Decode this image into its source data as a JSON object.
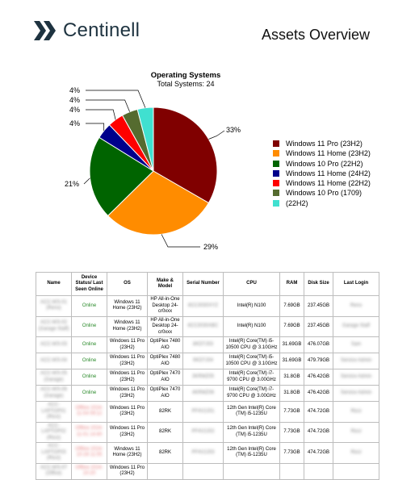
{
  "header": {
    "brand": "Centinell",
    "report_title": "Assets Overview",
    "brand_color": "#1e3340",
    "logo_icon": "chevron-logo-icon"
  },
  "chart_data": {
    "type": "pie",
    "title": "Operating Systems",
    "subtitle": "Total Systems: 24",
    "slices": [
      {
        "label": "Windows 11 Pro (23H2)",
        "value": 33,
        "display": "33%",
        "color": "#800000"
      },
      {
        "label": "Windows 11 Home (23H2)",
        "value": 29,
        "display": "29%",
        "color": "#ff8c00"
      },
      {
        "label": "Windows 10 Pro (22H2)",
        "value": 21,
        "display": "21%",
        "color": "#006400"
      },
      {
        "label": "Windows 11 Home (24H2)",
        "value": 4,
        "display": "4%",
        "color": "#00008b"
      },
      {
        "label": "Windows 11 Home (22H2)",
        "value": 4,
        "display": "4%",
        "color": "#ff0000"
      },
      {
        "label": "Windows 10 Pro (1709)",
        "value": 4,
        "display": "4%",
        "color": "#556b2f"
      },
      {
        "label": "(22H2)",
        "value": 4,
        "display": "4%",
        "color": "#40e0d0"
      }
    ],
    "legend": "right"
  },
  "table": {
    "headers": [
      "Name",
      "Device Status/ Last Seen Online",
      "OS",
      "Make & Model",
      "Serial Number",
      "CPU",
      "RAM",
      "Disk Size",
      "Last Login"
    ],
    "rows": [
      {
        "name": "ACC-WS-01 (Reno)",
        "status": "Online",
        "os": "Windows 11 Home (23H2)",
        "model": "HP All-in-One Desktop 24-cr0xxx",
        "serial": "8CC3030XYZ",
        "cpu": "Intel(R) N100",
        "ram": "7.69GB",
        "disk": "237.45GB",
        "login": "Reno"
      },
      {
        "name": "ACC-WS-02 (Garage Staff)",
        "status": "Online",
        "os": "Windows 11 Home (23H2)",
        "model": "HP All-in-One Desktop 24-cr0xxx",
        "serial": "8CC3030ABC",
        "cpu": "Intel(R) N100",
        "ram": "7.69GB",
        "disk": "237.45GB",
        "login": "Garage Staff"
      },
      {
        "name": "ACC-WS-03",
        "status": "Online",
        "os": "Windows 11 Pro (23H2)",
        "model": "OptiPlex 7480 AIO",
        "serial": "8KDTJ03",
        "cpu": "Intel(R) Core(TM) i5-10500 CPU @ 3.10GHz",
        "ram": "31.69GB",
        "disk": "476.07GB",
        "login": "Sam"
      },
      {
        "name": "ACC-WS-04",
        "status": "Online",
        "os": "Windows 11 Pro (23H2)",
        "model": "OptiPlex 7480 AIO",
        "serial": "9KDTJ04",
        "cpu": "Intel(R) Core(TM) i5-10500 CPU @ 3.10GHz",
        "ram": "31.69GB",
        "disk": "479.79GB",
        "login": "Service Admin"
      },
      {
        "name": "ACC-WS-05 (Garage)",
        "status": "Online",
        "os": "Windows 11 Pro (23H2)",
        "model": "OptiPlex 7470 AIO",
        "serial": "3KRMZ05",
        "cpu": "Intel(R) Core(TM) i7-9700 CPU @ 3.00GHz",
        "ram": "31.8GB",
        "disk": "476.42GB",
        "login": "Service Admin"
      },
      {
        "name": "ACC-WS-06 (Garage)",
        "status": "Online",
        "os": "Windows 11 Pro (23H2)",
        "model": "OptiPlex 7470 AIO",
        "serial": "4KRMZ06",
        "cpu": "Intel(R) Core(TM) i7-9700 CPU @ 3.00GHz",
        "ram": "31.8GB",
        "disk": "476.42GB",
        "login": "Service Admin"
      },
      {
        "name": "ACC-LAPTOP01 (Ricci)",
        "status": "Offline 2024-11-04 09:12",
        "os": "Windows 11 Pro (23H2)",
        "model": "82RK",
        "serial": "PF4V2J01",
        "cpu": "12th Gen Intel(R) Core (TM) i5-1235U",
        "ram": "7.73GB",
        "disk": "474.72GB",
        "login": "Ricci"
      },
      {
        "name": "ACC-LAPTOP02 (Ricci)",
        "status": "Offline 2024-11-01 14:40",
        "os": "Windows 11 Pro (23H2)",
        "model": "82RK",
        "serial": "PF4V2J02",
        "cpu": "12th Gen Intel(R) Core (TM) i5-1235U",
        "ram": "7.73GB",
        "disk": "474.72GB",
        "login": "Ricci"
      },
      {
        "name": "ACC-LAPTOP03 (Ricci)",
        "status": "Offline 2024-10-28 11:05",
        "os": "Windows 11 Home (23H2)",
        "model": "82RK",
        "serial": "PF4V2J03",
        "cpu": "12th Gen Intel(R) Core (TM) i5-1235U",
        "ram": "7.73GB",
        "disk": "474.72GB",
        "login": "Ricci"
      },
      {
        "name": "ACC-WS-07 (Office)",
        "status": "Offline 2024-10-20",
        "os": "Windows 11 Pro (23H2)",
        "model": "",
        "serial": "",
        "cpu": "",
        "ram": "",
        "disk": "",
        "login": ""
      }
    ]
  }
}
